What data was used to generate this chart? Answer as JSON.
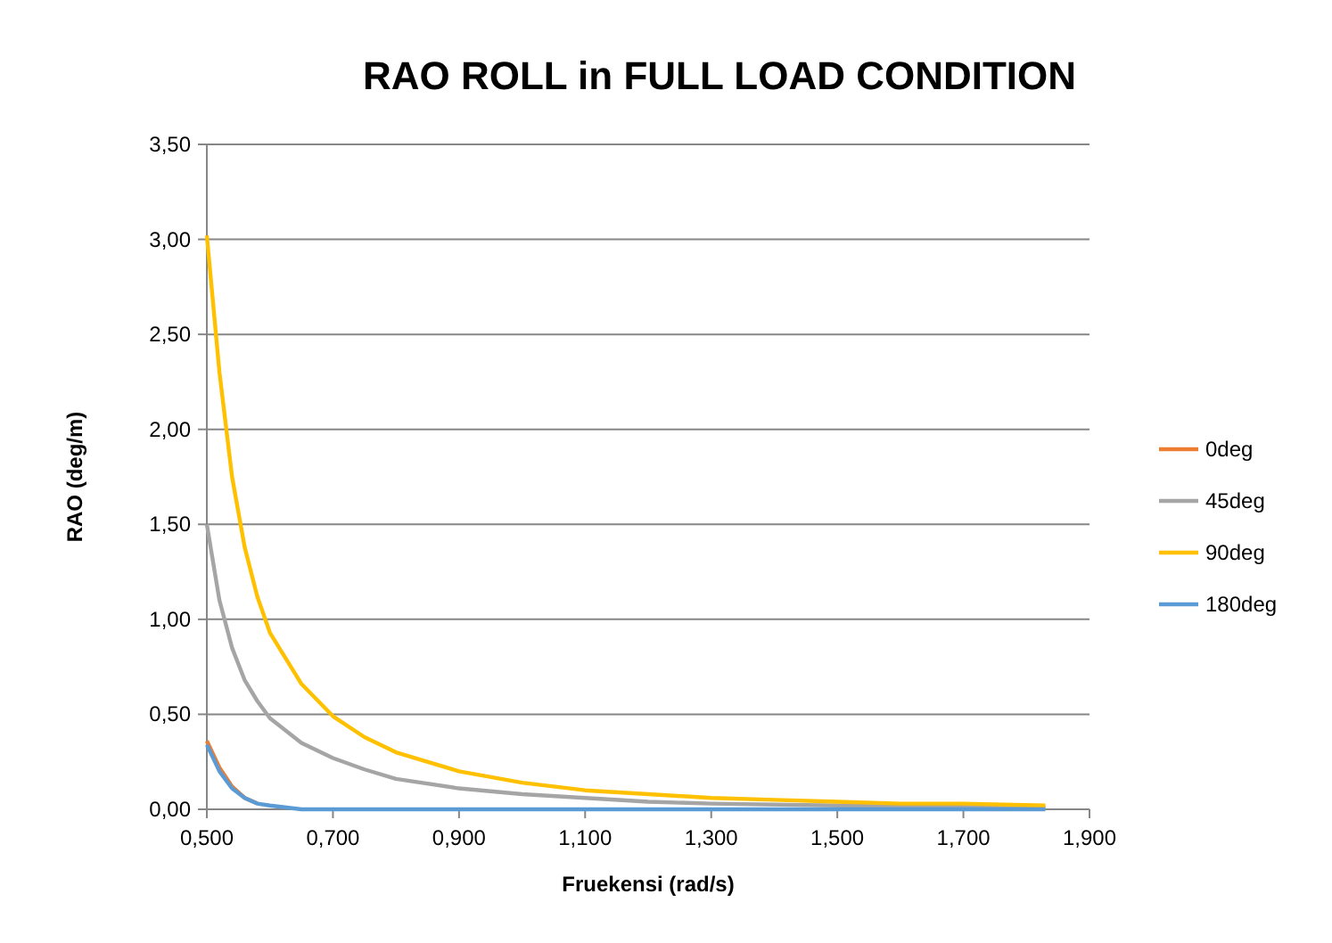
{
  "chart_data": {
    "type": "line",
    "title": "RAO ROLL in FULL LOAD CONDITION",
    "xlabel": "Fruekensi (rad/s)",
    "ylabel": "RAO (deg/m)",
    "xlim": [
      0.5,
      1.9
    ],
    "xticks": [
      {
        "value": 0.5,
        "label": "0,500"
      },
      {
        "value": 0.7,
        "label": "0,700"
      },
      {
        "value": 0.9,
        "label": "0,900"
      },
      {
        "value": 1.1,
        "label": "1,100"
      },
      {
        "value": 1.3,
        "label": "1,300"
      },
      {
        "value": 1.5,
        "label": "1,500"
      },
      {
        "value": 1.7,
        "label": "1,700"
      },
      {
        "value": 1.9,
        "label": "1,900"
      }
    ],
    "ylim": [
      0,
      3.5
    ],
    "yticks": [
      {
        "value": 0,
        "label": "0,00"
      },
      {
        "value": 0.5,
        "label": "0,50"
      },
      {
        "value": 1,
        "label": "1,00"
      },
      {
        "value": 1.5,
        "label": "1,50"
      },
      {
        "value": 2,
        "label": "2,00"
      },
      {
        "value": 2.5,
        "label": "2,50"
      },
      {
        "value": 3,
        "label": "3,00"
      },
      {
        "value": 3.5,
        "label": "3,50"
      }
    ],
    "grid": "y",
    "legend": "right",
    "marker": "none",
    "line_style": "solid",
    "series": [
      {
        "name": "0deg",
        "color": "#ed7d31",
        "x": [
          0.5,
          0.52,
          0.54,
          0.56,
          0.58
        ],
        "values": [
          0.36,
          0.22,
          0.12,
          0.06,
          0.03
        ]
      },
      {
        "name": "45deg",
        "color": "#a5a5a5",
        "x": [
          0.5,
          0.52,
          0.54,
          0.56,
          0.58,
          0.6,
          0.65,
          0.7,
          0.75,
          0.8,
          0.9,
          1.0,
          1.1,
          1.2,
          1.3,
          1.5,
          1.83
        ],
        "values": [
          1.5,
          1.1,
          0.85,
          0.68,
          0.57,
          0.48,
          0.35,
          0.27,
          0.21,
          0.16,
          0.11,
          0.08,
          0.06,
          0.04,
          0.03,
          0.02,
          0.01
        ]
      },
      {
        "name": "90deg",
        "color": "#ffc000",
        "x": [
          0.5,
          0.52,
          0.54,
          0.56,
          0.58,
          0.6,
          0.65,
          0.7,
          0.75,
          0.8,
          0.9,
          1.0,
          1.1,
          1.2,
          1.3,
          1.4,
          1.5,
          1.6,
          1.7,
          1.83
        ],
        "values": [
          3.02,
          2.3,
          1.75,
          1.38,
          1.12,
          0.93,
          0.66,
          0.49,
          0.38,
          0.3,
          0.2,
          0.14,
          0.1,
          0.08,
          0.06,
          0.05,
          0.04,
          0.03,
          0.03,
          0.02
        ]
      },
      {
        "name": "180deg",
        "color": "#5b9bd5",
        "x": [
          0.5,
          0.52,
          0.54,
          0.56,
          0.58,
          0.6,
          0.65,
          0.7,
          0.9,
          1.2,
          1.5,
          1.83
        ],
        "values": [
          0.34,
          0.2,
          0.11,
          0.06,
          0.03,
          0.02,
          0,
          0,
          0,
          0,
          0,
          0
        ]
      }
    ]
  }
}
